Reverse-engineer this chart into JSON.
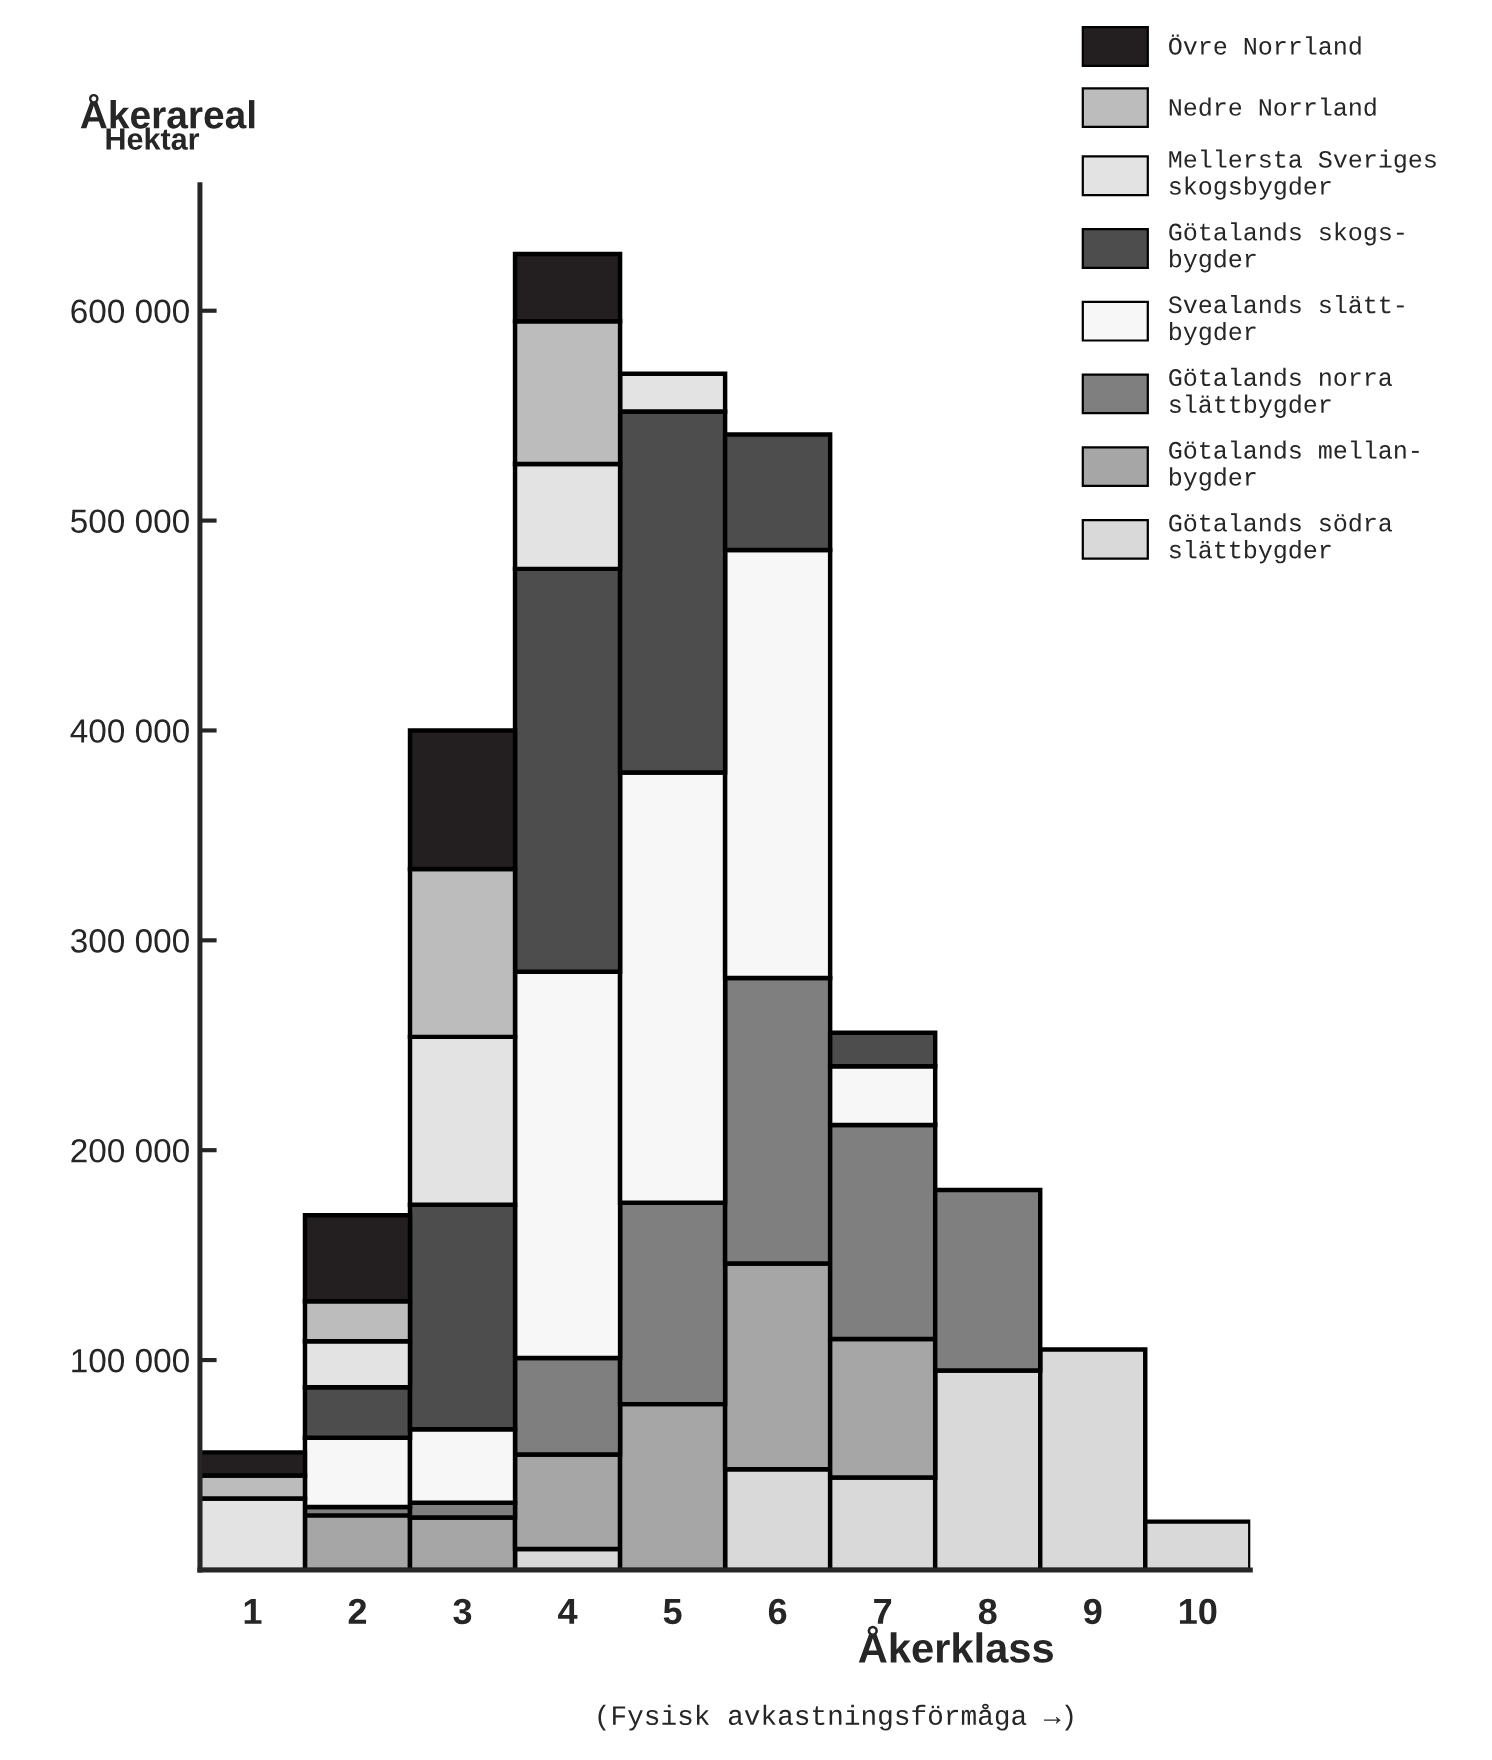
{
  "chart_data": {
    "type": "bar",
    "stacked": true,
    "xlabel": "Åkerklass",
    "ylabel": "Åkerareal",
    "annotations": [
      "Hektar",
      "(Fysisk avkastningsförmåga →)"
    ],
    "categories": [
      "1",
      "2",
      "3",
      "4",
      "5",
      "6",
      "7",
      "8",
      "9",
      "10"
    ],
    "ylim": [
      0,
      660000
    ],
    "yticks": [
      {
        "value": 100000,
        "label": "100 000"
      },
      {
        "value": 200000,
        "label": "200 000"
      },
      {
        "value": 300000,
        "label": "300 000"
      },
      {
        "value": 400000,
        "label": "400 000"
      },
      {
        "value": 500000,
        "label": "500 000"
      },
      {
        "value": 600000,
        "label": "600 000"
      }
    ],
    "legend": "top right",
    "grid": false,
    "series": [
      {
        "name": "Götalands södra\nslättbygder",
        "color": "#d9d9d9",
        "values": [
          null,
          null,
          null,
          10000,
          null,
          48000,
          44000,
          95000,
          105000,
          23000
        ]
      },
      {
        "name": "Götalands mellan-\nbygder",
        "color": "#a6a6a6",
        "values": [
          null,
          26000,
          25000,
          45000,
          79000,
          98000,
          66000,
          null,
          null,
          null
        ]
      },
      {
        "name": "Götalands norra\nslättbygder",
        "color": "#7f7f7f",
        "values": [
          null,
          4000,
          7000,
          46000,
          96000,
          136000,
          102000,
          86000,
          null,
          null
        ]
      },
      {
        "name": "Svealands slätt-\nbygder",
        "color": "#f7f7f7",
        "values": [
          null,
          33000,
          35000,
          184000,
          205000,
          204000,
          28000,
          null,
          null,
          null
        ]
      },
      {
        "name": "Götalands skogs-\nbygder",
        "color": "#4d4d4d",
        "values": [
          null,
          24000,
          107000,
          192000,
          172000,
          55000,
          16000,
          null,
          null,
          null
        ]
      },
      {
        "name": "Mellersta Sveriges\nskogsbygder",
        "color": "#e3e3e3",
        "values": [
          34000,
          22000,
          80000,
          50000,
          18000,
          null,
          null,
          null,
          null,
          null
        ]
      },
      {
        "name": "Nedre Norrland",
        "color": "#bcbcbc",
        "values": [
          11000,
          19000,
          80000,
          68000,
          null,
          null,
          null,
          null,
          null,
          null
        ]
      },
      {
        "name": "Övre Norrland",
        "color": "#231f20",
        "values": [
          11000,
          41000,
          66000,
          32000,
          null,
          null,
          null,
          null,
          null,
          null
        ]
      }
    ]
  }
}
